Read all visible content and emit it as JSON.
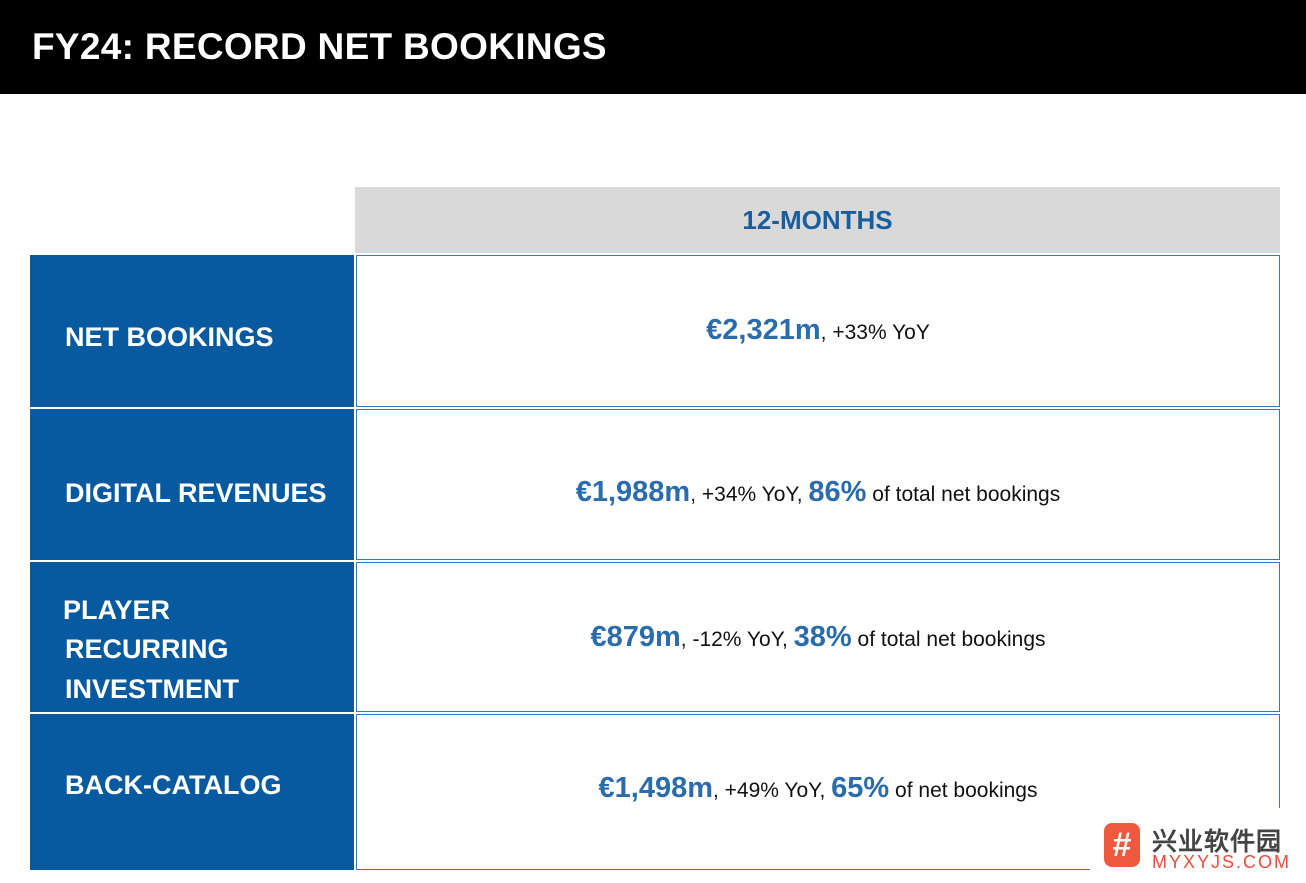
{
  "header": {
    "title": "FY24: RECORD NET BOOKINGS"
  },
  "table": {
    "column_header": "12-MONTHS",
    "rows": [
      {
        "label": "NET BOOKINGS",
        "value": "€2,321m",
        "change": ", +33% YoY",
        "share": "",
        "share_text": ""
      },
      {
        "label": "DIGITAL REVENUES",
        "value": "€1,988m",
        "change": ", +34% YoY, ",
        "share": "86%",
        "share_text": " of total net bookings"
      },
      {
        "label_lines": [
          "PLAYER",
          "RECURRING",
          "INVESTMENT"
        ],
        "value": "€879m",
        "change": ", -12% YoY, ",
        "share": "38%",
        "share_text": " of total net bookings"
      },
      {
        "label": "BACK-CATALOG",
        "value": "€1,498m",
        "change": ", +49% YoY, ",
        "share": "65%",
        "share_text": " of net bookings"
      }
    ]
  },
  "watermark": {
    "icon": "#",
    "text_cn": "兴业软件园",
    "text_en": "MYXYJS.COM"
  },
  "colors": {
    "header_bg": "#000000",
    "label_bg": "#075a9f",
    "accent": "#2a6cac",
    "column_header_bg": "#d9d9d9"
  }
}
